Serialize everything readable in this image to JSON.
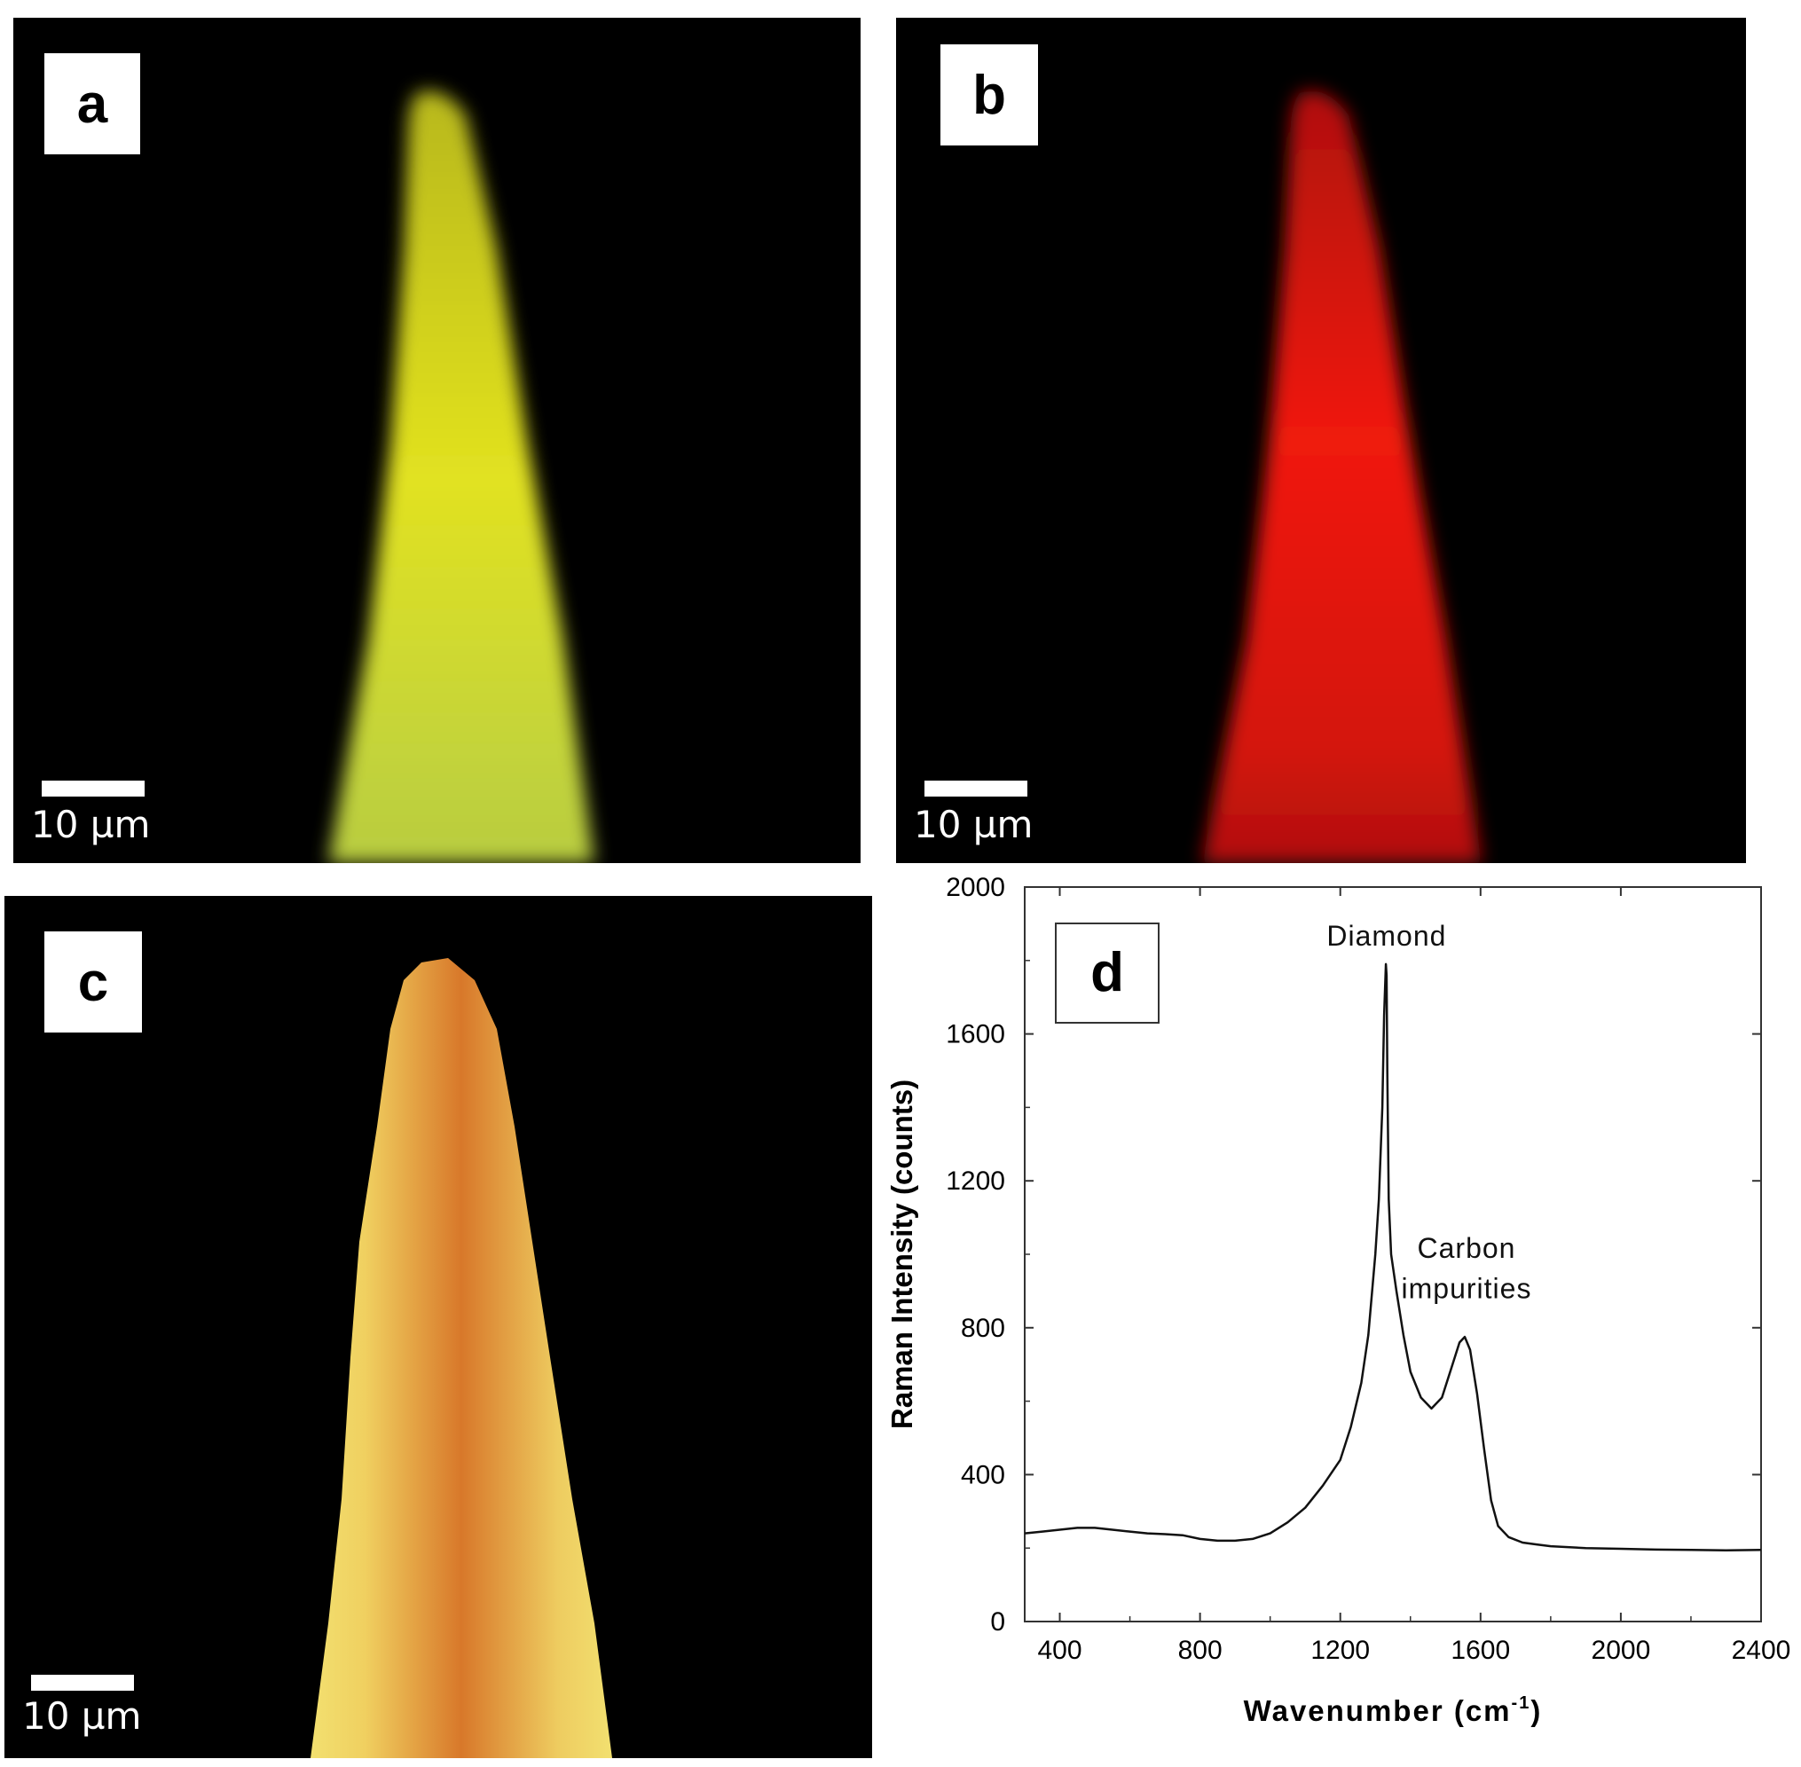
{
  "panels": {
    "a": {
      "label": "a",
      "scale_text": "10 µm",
      "color": "#d6d61a"
    },
    "b": {
      "label": "b",
      "scale_text": "10 µm",
      "color": "#e8120e"
    },
    "c": {
      "label": "c",
      "scale_text": "10 µm",
      "color": "#e69a3a"
    }
  },
  "chart_data": {
    "type": "line",
    "panel_label": "d",
    "xlabel": "Wavenumber (cm",
    "xlabel_sup": "-1",
    "xlabel_close": ")",
    "ylabel": "Raman Intensity (counts)",
    "xlim": [
      300,
      2400
    ],
    "ylim": [
      0,
      2000
    ],
    "xticks": [
      400,
      800,
      1200,
      1600,
      2000,
      2400
    ],
    "yticks": [
      0,
      400,
      800,
      1200,
      1600,
      2000
    ],
    "annotations": [
      {
        "text": "Diamond",
        "x": 1332,
        "y": 1840
      },
      {
        "text": "Carbon",
        "x": 1560,
        "y": 990
      },
      {
        "text": "impurities",
        "x": 1560,
        "y": 880
      }
    ],
    "series": [
      {
        "x": [
          300,
          350,
          400,
          450,
          500,
          550,
          600,
          650,
          700,
          750,
          800,
          850,
          900,
          950,
          1000,
          1050,
          1100,
          1150,
          1200,
          1230,
          1260,
          1280,
          1300,
          1310,
          1320,
          1325,
          1330,
          1332,
          1334,
          1338,
          1345,
          1360,
          1380,
          1400,
          1430,
          1460,
          1490,
          1520,
          1540,
          1555,
          1570,
          1590,
          1610,
          1630,
          1650,
          1680,
          1720,
          1760,
          1800,
          1900,
          2000,
          2100,
          2200,
          2300,
          2400
        ],
        "y": [
          240,
          245,
          250,
          255,
          255,
          250,
          245,
          240,
          238,
          235,
          225,
          220,
          220,
          225,
          240,
          270,
          310,
          370,
          440,
          530,
          650,
          780,
          1000,
          1150,
          1400,
          1650,
          1790,
          1760,
          1500,
          1150,
          1000,
          900,
          780,
          680,
          610,
          580,
          610,
          700,
          760,
          775,
          740,
          620,
          470,
          330,
          260,
          230,
          215,
          210,
          205,
          200,
          198,
          196,
          195,
          194,
          195
        ]
      }
    ]
  }
}
